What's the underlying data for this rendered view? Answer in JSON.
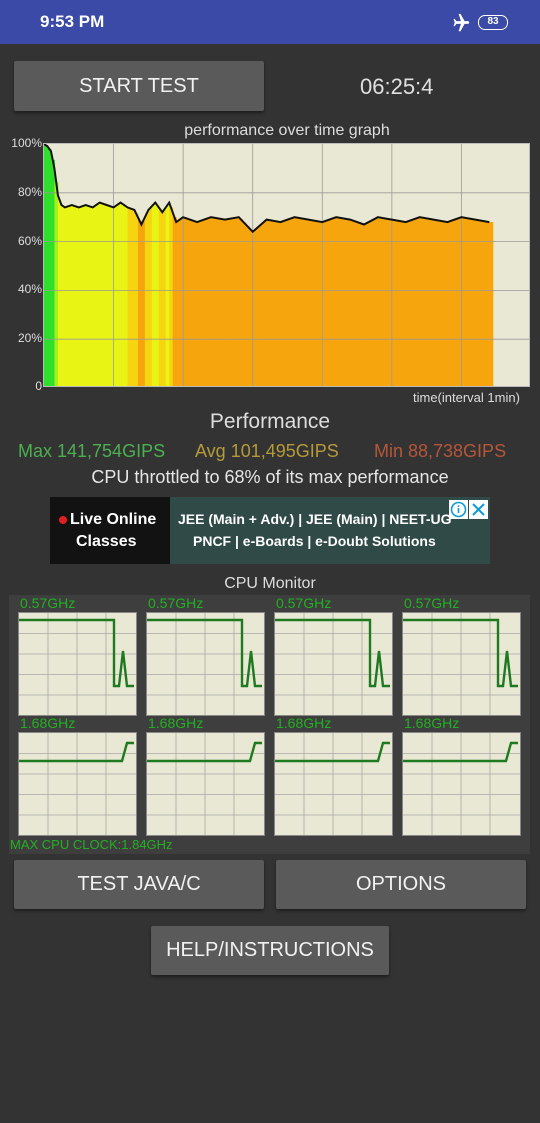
{
  "status_bar": {
    "time": "9:53 PM",
    "battery": "83",
    "icons": [
      "airplane-icon",
      "battery-icon"
    ]
  },
  "controls": {
    "start_label": "START TEST",
    "timer": "06:25:4"
  },
  "graph": {
    "title": "performance over time graph",
    "y_labels": [
      "100%",
      "80%",
      "60%",
      "40%",
      "20%",
      "0"
    ],
    "x_label": "time(interval 1min)"
  },
  "chart_data": {
    "type": "area",
    "title": "performance over time graph",
    "xlabel": "time(interval 1min)",
    "ylabel": "",
    "ylim": [
      0,
      100
    ],
    "x_range_minutes": [
      0,
      7
    ],
    "grid": true,
    "series": [
      {
        "x": [
          0,
          0.05,
          0.1,
          0.15,
          0.2,
          0.25,
          0.3,
          0.4,
          0.5,
          0.6,
          0.7,
          0.8,
          0.9,
          1.0,
          1.1,
          1.2,
          1.3,
          1.4,
          1.5,
          1.6,
          1.7,
          1.8,
          1.9,
          2.0,
          2.2,
          2.4,
          2.6,
          2.8,
          3.0,
          3.2,
          3.4,
          3.6,
          3.8,
          4.0,
          4.2,
          4.4,
          4.6,
          4.8,
          5.0,
          5.2,
          5.4,
          5.6,
          5.8,
          6.0,
          6.2,
          6.4
        ],
        "values": [
          100,
          99,
          97,
          90,
          79,
          75,
          74,
          75,
          74,
          75,
          74,
          76,
          75,
          74,
          76,
          74,
          73,
          67,
          73,
          76,
          72,
          76,
          68,
          70,
          68,
          70,
          69,
          70,
          64,
          69,
          68,
          70,
          69,
          68,
          70,
          69,
          67,
          70,
          69,
          68,
          70,
          69,
          68,
          70,
          69,
          68
        ]
      }
    ]
  },
  "performance": {
    "heading": "Performance",
    "max": "Max 141,754GIPS",
    "avg": "Avg 101,495GIPS",
    "min": "Min 88,738GIPS",
    "throttle": "CPU throttled to 68% of its max performance"
  },
  "ad": {
    "title_line1": "Live Online",
    "title_line2": "Classes",
    "line1": "JEE (Main + Adv.) | JEE (Main) | NEET-UG",
    "line2": "PNCF | e-Boards | e-Doubt Solutions",
    "icons": [
      "info-icon",
      "close-icon"
    ]
  },
  "cpu_monitor": {
    "title": "CPU Monitor",
    "cores": [
      {
        "freq": "0.57GHz"
      },
      {
        "freq": "0.57GHz"
      },
      {
        "freq": "0.57GHz"
      },
      {
        "freq": "0.57GHz"
      },
      {
        "freq": "1.68GHz"
      },
      {
        "freq": "1.68GHz"
      },
      {
        "freq": "1.68GHz"
      },
      {
        "freq": "1.68GHz"
      }
    ],
    "max_clock": "MAX CPU CLOCK:1.84GHz"
  },
  "buttons": {
    "java": "TEST JAVA/C",
    "options": "OPTIONS",
    "help": "HELP/INSTRUCTIONS"
  }
}
